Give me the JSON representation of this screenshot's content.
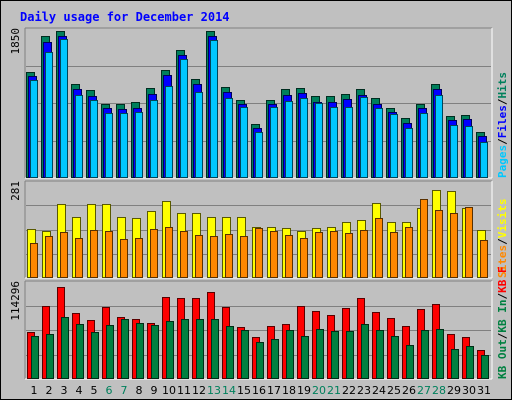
{
  "chart_data": {
    "type": "bar",
    "title": "Daily usage for December 2014",
    "categories": [
      "1",
      "2",
      "3",
      "4",
      "5",
      "6",
      "7",
      "8",
      "9",
      "10",
      "11",
      "12",
      "13",
      "14",
      "15",
      "16",
      "17",
      "18",
      "19",
      "20",
      "21",
      "22",
      "23",
      "24",
      "25",
      "26",
      "27",
      "28",
      "29",
      "30",
      "31"
    ],
    "weekend_categories": [
      "6",
      "7",
      "13",
      "14",
      "20",
      "21",
      "27",
      "28"
    ],
    "grid": true,
    "colors": {
      "hits": "#00805c",
      "files": "#0000ff",
      "pages": "#00c8ff",
      "visits": "#ffff00",
      "sites": "#ff8800",
      "kb_f": "#ff0000",
      "kb_in": "#008040",
      "kb_out": "#008040",
      "title": "#0000ff",
      "weekend": "#00805c",
      "plot_bg": "#c0c0c0",
      "grid": "#808080",
      "frame_bg": "#c0c0c0"
    },
    "panels": [
      {
        "id": "hits-files-pages",
        "max_label": "1850",
        "ylim": [
          0,
          1850
        ],
        "legend": [
          {
            "text": "Hits",
            "color": "#00805c"
          },
          {
            "text": "/",
            "color": "#000000"
          },
          {
            "text": "Files",
            "color": "#0000ff"
          },
          {
            "text": "/",
            "color": "#000000"
          },
          {
            "text": "Pages",
            "color": "#00c8ff"
          }
        ],
        "series": [
          {
            "key": "hits",
            "values": [
              1330,
              1770,
              1840,
              1170,
              1100,
              920,
              930,
              950,
              1120,
              1350,
              1600,
              1240,
              1840,
              1140,
              970,
              680,
              980,
              1110,
              1120,
              1020,
              1020,
              1050,
              1110,
              1000,
              880,
              750,
              930,
              1180,
              770,
              790,
              570
            ]
          },
          {
            "key": "files",
            "values": [
              1270,
              1700,
              1770,
              1110,
              1030,
              870,
              860,
              880,
              1050,
              1290,
              1540,
              1170,
              1770,
              1080,
              920,
              620,
              920,
              1040,
              1060,
              950,
              950,
              990,
              1040,
              930,
              830,
              690,
              870,
              1110,
              720,
              740,
              520
            ]
          },
          {
            "key": "pages",
            "values": [
              1220,
              1570,
              1740,
              1040,
              980,
              810,
              810,
              820,
              980,
              1150,
              1490,
              1070,
              1720,
              1000,
              890,
              580,
              890,
              960,
              1000,
              940,
              890,
              890,
              1010,
              880,
              800,
              620,
              810,
              1040,
              660,
              650,
              450
            ]
          }
        ]
      },
      {
        "id": "visits-sites",
        "max_label": "281",
        "ylim": [
          0,
          281
        ],
        "legend": [
          {
            "text": "Visits",
            "color": "#ffff00"
          },
          {
            "text": "/",
            "color": "#000000"
          },
          {
            "text": "Sites",
            "color": "#ff8800"
          }
        ],
        "series": [
          {
            "key": "visits",
            "values": [
              145,
              138,
              218,
              179,
              220,
              220,
              180,
              177,
              198,
              228,
              193,
              193,
              180,
              180,
              179,
              151,
              151,
              149,
              140,
              147,
              150,
              165,
              172,
              222,
              166,
              166,
              207,
              259,
              258,
              208,
              141
            ]
          },
          {
            "key": "sites",
            "values": [
              103,
              123,
              135,
              117,
              143,
              140,
              115,
              118,
              145,
              150,
              138,
              127,
              123,
              129,
              123,
              148,
              138,
              126,
              119,
              136,
              140,
              134,
              143,
              177,
              135,
              150,
              235,
              200,
              191,
              210,
              113
            ]
          }
        ]
      },
      {
        "id": "kbf-kbin-kbout",
        "max_label": "114296",
        "ylim": [
          0,
          114296
        ],
        "legend": [
          {
            "text": "KB F",
            "color": "#ff0000"
          },
          {
            "text": "/",
            "color": "#000000"
          },
          {
            "text": "KB In",
            "color": "#008040"
          },
          {
            "text": "/",
            "color": "#000000"
          },
          {
            "text": "KB Out",
            "color": "#008040"
          }
        ],
        "series": [
          {
            "key": "kb_f",
            "values": [
              56000,
              87000,
              110000,
              78000,
              70000,
              86000,
              74000,
              72000,
              67000,
              98000,
              97000,
              96000,
              104000,
              86000,
              62000,
              50000,
              63000,
              66000,
              87000,
              81000,
              76000,
              84000,
              96000,
              80000,
              73000,
              63000,
              83000,
              89000,
              53000,
              50000,
              35000
            ]
          },
          {
            "key": "kb_in",
            "values": [
              51000,
              53000,
              74000,
              66000,
              56000,
              64000,
              72000,
              67000,
              64000,
              69000,
              71000,
              71000,
              72000,
              63000,
              58000,
              44000,
              48000,
              58000,
              51000,
              59000,
              57000,
              57000,
              65000,
              58000,
              51000,
              41000,
              58000,
              59000,
              36000,
              39000,
              29000
            ]
          }
        ]
      }
    ]
  }
}
